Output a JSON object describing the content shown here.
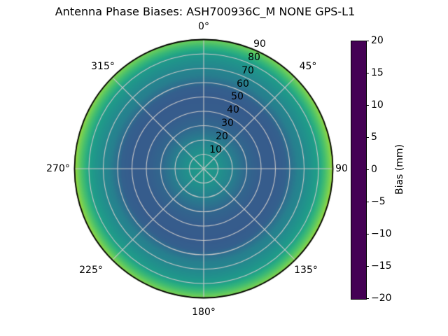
{
  "title": "Antenna Phase Biases: ASH700936C_M    NONE GPS-L1",
  "chart_data": {
    "type": "heatmap",
    "projection": "polar",
    "title": "Antenna Phase Biases: ASH700936C_M    NONE GPS-L1",
    "colormap": "viridis",
    "grid": true,
    "angular_ticks": {
      "labels": [
        "0°",
        "45°",
        "90",
        "135°",
        "180°",
        "225°",
        "270°",
        "315°"
      ],
      "azimuth_deg": [
        0,
        45,
        90,
        135,
        180,
        225,
        270,
        315
      ]
    },
    "radial_ticks": {
      "labels": [
        "10",
        "20",
        "30",
        "40",
        "50",
        "60",
        "70",
        "80",
        "90"
      ],
      "values": [
        10,
        20,
        30,
        40,
        50,
        60,
        70,
        80,
        90
      ],
      "axis_meaning": "zenith angle, 0 at center to 90 at outer rim"
    },
    "colorbar": {
      "label": "Bias (mm)",
      "min": -20,
      "max": 20,
      "tick_labels": [
        "20",
        "15",
        "10",
        "5",
        "0",
        "−5",
        "−10",
        "−15",
        "−20"
      ],
      "tick_values": [
        20,
        15,
        10,
        5,
        0,
        -5,
        -10,
        -15,
        -20
      ]
    },
    "radial_profile": {
      "description": "azimuth-averaged bias (mm) vs zenith angle (deg)",
      "zenith_deg": [
        0,
        10,
        20,
        30,
        40,
        50,
        57,
        65,
        70,
        75,
        80,
        85,
        90
      ],
      "bias_mm": [
        2.0,
        0.5,
        -2.5,
        -7.0,
        -8.5,
        -8.7,
        -8.0,
        -2.8,
        -1.5,
        0.3,
        2.5,
        7.5,
        13.0
      ]
    },
    "rim_bias_by_azimuth_deg": {
      "0": 11.4,
      "90": 14.2,
      "180": 12.2,
      "270": 14.2
    },
    "colors": {
      "background": "#ffffff",
      "grid_line": "#c8c8c8",
      "outline": "#000000",
      "text": "#000000"
    }
  }
}
